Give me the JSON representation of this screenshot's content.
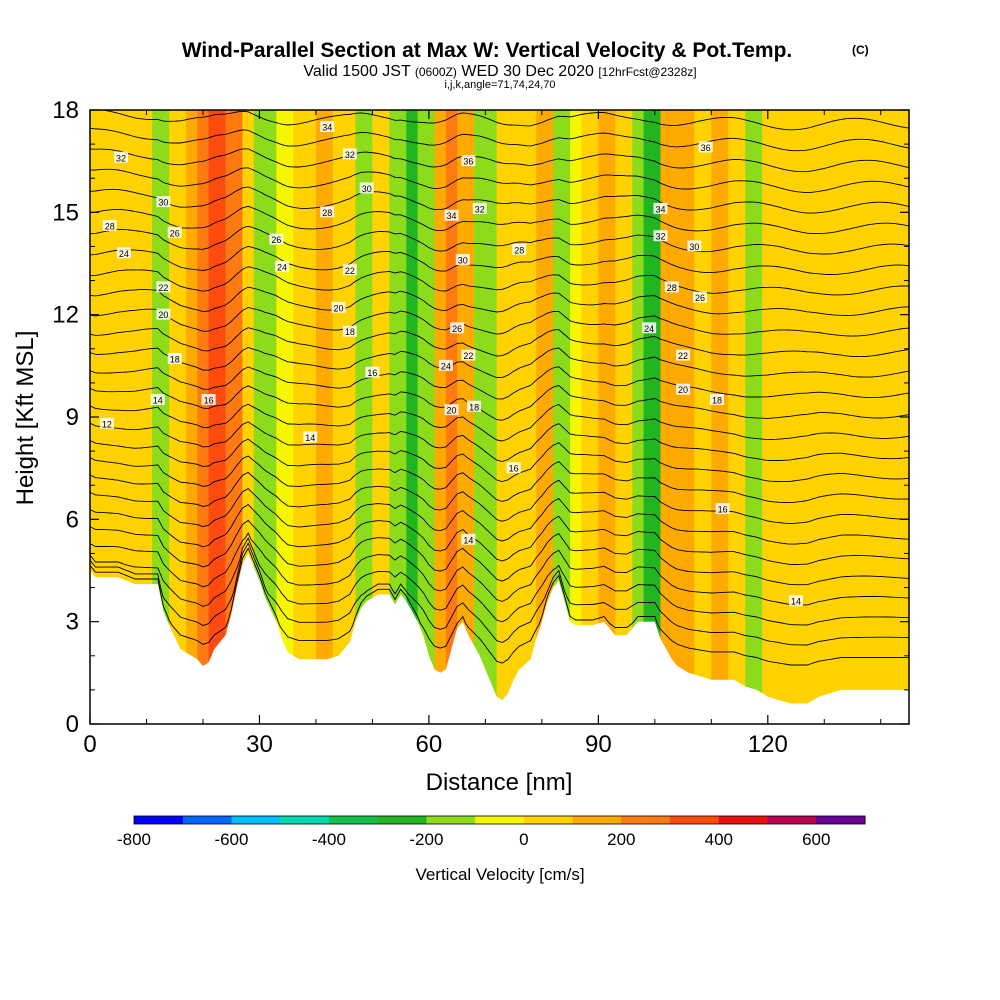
{
  "chart_data": {
    "type": "heatmap",
    "title": "Wind-Parallel Section at Max W: Vertical Velocity & Pot.Temp.",
    "title_mark": "(C)",
    "subtitle_parts": [
      "Valid 1500 JST",
      "(0600Z)",
      "WED 30 Dec 2020",
      "[12hrFcst@2328z]"
    ],
    "subtitle2": "i,j,k,angle=71,74,24,70",
    "xlabel": "Distance [nm]",
    "ylabel": "Height [Kft MSL]",
    "xlim": [
      0,
      145
    ],
    "ylim": [
      0,
      18
    ],
    "x_ticks": [
      "0",
      "30",
      "60",
      "90",
      "120"
    ],
    "x_tick_values": [
      0,
      30,
      60,
      90,
      120
    ],
    "y_ticks": [
      "0",
      "3",
      "6",
      "9",
      "12",
      "15",
      "18"
    ],
    "y_tick_values": [
      0,
      3,
      6,
      9,
      12,
      15,
      18
    ],
    "colorbar": {
      "label": "Vertical Velocity [cm/s]",
      "bounds": [
        -800,
        700
      ],
      "tick_labels": [
        "-800",
        "-600",
        "-400",
        "-200",
        "0",
        "200",
        "400",
        "600"
      ],
      "tick_values": [
        -800,
        -600,
        -400,
        -200,
        0,
        200,
        400,
        600
      ],
      "colors": [
        "#0000ff",
        "#0066ff",
        "#00bfff",
        "#00d9b0",
        "#11c04a",
        "#22b522",
        "#8ddc1c",
        "#f6f600",
        "#ffd200",
        "#ffaa00",
        "#ff7a10",
        "#ff4a10",
        "#e61010",
        "#b80050",
        "#6a009a"
      ]
    },
    "terrain_kft": [
      [
        0,
        4.5
      ],
      [
        1,
        4.3
      ],
      [
        5,
        4.3
      ],
      [
        8,
        4.1
      ],
      [
        12,
        4.1
      ],
      [
        13,
        3.3
      ],
      [
        14,
        2.9
      ],
      [
        16,
        2.2
      ],
      [
        19,
        1.9
      ],
      [
        20,
        1.7
      ],
      [
        21,
        1.8
      ],
      [
        22,
        2.2
      ],
      [
        24,
        2.6
      ],
      [
        25,
        3.2
      ],
      [
        26,
        4.0
      ],
      [
        27,
        4.7
      ],
      [
        28,
        5.0
      ],
      [
        29,
        4.6
      ],
      [
        30,
        4.2
      ],
      [
        31,
        3.7
      ],
      [
        33,
        3.0
      ],
      [
        34,
        2.5
      ],
      [
        35,
        2.1
      ],
      [
        37,
        1.9
      ],
      [
        42,
        1.9
      ],
      [
        44,
        2.0
      ],
      [
        46,
        2.4
      ],
      [
        47,
        3.0
      ],
      [
        48,
        3.4
      ],
      [
        49,
        3.6
      ],
      [
        50,
        3.7
      ],
      [
        51,
        3.8
      ],
      [
        53,
        3.8
      ],
      [
        54,
        3.5
      ],
      [
        55,
        3.8
      ],
      [
        56,
        3.6
      ],
      [
        57,
        3.3
      ],
      [
        58,
        3.0
      ],
      [
        59,
        2.6
      ],
      [
        60,
        2.0
      ],
      [
        61,
        1.6
      ],
      [
        62,
        1.5
      ],
      [
        63,
        1.6
      ],
      [
        64,
        2.2
      ],
      [
        65,
        2.8
      ],
      [
        66,
        3.0
      ],
      [
        67,
        2.6
      ],
      [
        69,
        2.0
      ],
      [
        70,
        1.6
      ],
      [
        71,
        1.2
      ],
      [
        72,
        0.8
      ],
      [
        73,
        0.7
      ],
      [
        74,
        0.9
      ],
      [
        75,
        1.3
      ],
      [
        76,
        1.6
      ],
      [
        78,
        1.9
      ],
      [
        79,
        2.5
      ],
      [
        80,
        3.0
      ],
      [
        81,
        3.6
      ],
      [
        82,
        4.0
      ],
      [
        83,
        4.2
      ],
      [
        84,
        3.6
      ],
      [
        85,
        3.0
      ],
      [
        86,
        2.9
      ],
      [
        89,
        2.9
      ],
      [
        91,
        3.0
      ],
      [
        92,
        2.8
      ],
      [
        93,
        2.6
      ],
      [
        95,
        2.6
      ],
      [
        96,
        2.8
      ],
      [
        97,
        3.0
      ],
      [
        100,
        3.0
      ],
      [
        101,
        2.5
      ],
      [
        102,
        2.2
      ],
      [
        103,
        1.9
      ],
      [
        104,
        1.7
      ],
      [
        106,
        1.5
      ],
      [
        108,
        1.4
      ],
      [
        110,
        1.3
      ],
      [
        114,
        1.3
      ],
      [
        116,
        1.1
      ],
      [
        118,
        1.0
      ],
      [
        120,
        0.8
      ],
      [
        122,
        0.7
      ],
      [
        124,
        0.6
      ],
      [
        127,
        0.6
      ],
      [
        129,
        0.8
      ],
      [
        131,
        0.9
      ],
      [
        133,
        1.0
      ],
      [
        135,
        1.0
      ],
      [
        145,
        1.0
      ]
    ],
    "vv_bands": [
      {
        "x": [
          0,
          11
        ],
        "value": 20
      },
      {
        "x": [
          11,
          14
        ],
        "value": -150
      },
      {
        "x": [
          14,
          17
        ],
        "value": 60
      },
      {
        "x": [
          17,
          19
        ],
        "value": 140
      },
      {
        "x": [
          19,
          21
        ],
        "value": 240
      },
      {
        "x": [
          21,
          24
        ],
        "value": 330
      },
      {
        "x": [
          24,
          27
        ],
        "value": 200
      },
      {
        "x": [
          27,
          29
        ],
        "value": 60
      },
      {
        "x": [
          29,
          33
        ],
        "value": -120
      },
      {
        "x": [
          33,
          36
        ],
        "value": -80
      },
      {
        "x": [
          36,
          40
        ],
        "value": 40
      },
      {
        "x": [
          40,
          43
        ],
        "value": 100
      },
      {
        "x": [
          43,
          47
        ],
        "value": 30
      },
      {
        "x": [
          47,
          50
        ],
        "value": -130
      },
      {
        "x": [
          50,
          53
        ],
        "value": 20
      },
      {
        "x": [
          53,
          56
        ],
        "value": -200
      },
      {
        "x": [
          56,
          58
        ],
        "value": -260
      },
      {
        "x": [
          58,
          61
        ],
        "value": -160
      },
      {
        "x": [
          61,
          63
        ],
        "value": 150
      },
      {
        "x": [
          63,
          65
        ],
        "value": 260
      },
      {
        "x": [
          65,
          68
        ],
        "value": 140
      },
      {
        "x": [
          68,
          72
        ],
        "value": -120
      },
      {
        "x": [
          72,
          76
        ],
        "value": 20
      },
      {
        "x": [
          76,
          79
        ],
        "value": 50
      },
      {
        "x": [
          79,
          82
        ],
        "value": 150
      },
      {
        "x": [
          82,
          85
        ],
        "value": -160
      },
      {
        "x": [
          85,
          87
        ],
        "value": -60
      },
      {
        "x": [
          87,
          90
        ],
        "value": 80
      },
      {
        "x": [
          90,
          93
        ],
        "value": 160
      },
      {
        "x": [
          93,
          96
        ],
        "value": 40
      },
      {
        "x": [
          96,
          98
        ],
        "value": -160
      },
      {
        "x": [
          98,
          101
        ],
        "value": -220
      },
      {
        "x": [
          101,
          104
        ],
        "value": 100
      },
      {
        "x": [
          104,
          107
        ],
        "value": 190
      },
      {
        "x": [
          107,
          110
        ],
        "value": 70
      },
      {
        "x": [
          110,
          113
        ],
        "value": 130
      },
      {
        "x": [
          113,
          116
        ],
        "value": 60
      },
      {
        "x": [
          116,
          119
        ],
        "value": -120
      },
      {
        "x": [
          119,
          124
        ],
        "value": 40
      },
      {
        "x": [
          124,
          130
        ],
        "value": 80
      },
      {
        "x": [
          130,
          136
        ],
        "value": 40
      },
      {
        "x": [
          136,
          141
        ],
        "value": 90
      },
      {
        "x": [
          141,
          145
        ],
        "value": 40
      }
    ],
    "isentrope_labels": [
      {
        "text": "32",
        "x": 5.5,
        "y": 16.6
      },
      {
        "text": "30",
        "x": 13,
        "y": 15.3
      },
      {
        "text": "28",
        "x": 3.5,
        "y": 14.6
      },
      {
        "text": "26",
        "x": 15,
        "y": 14.4
      },
      {
        "text": "24",
        "x": 6,
        "y": 13.8
      },
      {
        "text": "22",
        "x": 13,
        "y": 12.8
      },
      {
        "text": "20",
        "x": 13,
        "y": 12.0
      },
      {
        "text": "18",
        "x": 15,
        "y": 10.7
      },
      {
        "text": "14",
        "x": 12,
        "y": 9.5
      },
      {
        "text": "16",
        "x": 21,
        "y": 9.5
      },
      {
        "text": "12",
        "x": 3,
        "y": 8.8
      },
      {
        "text": "34",
        "x": 42,
        "y": 17.5
      },
      {
        "text": "32",
        "x": 46,
        "y": 16.7
      },
      {
        "text": "30",
        "x": 49,
        "y": 15.7
      },
      {
        "text": "28",
        "x": 42,
        "y": 15.0
      },
      {
        "text": "26",
        "x": 33,
        "y": 14.2
      },
      {
        "text": "24",
        "x": 34,
        "y": 13.4
      },
      {
        "text": "22",
        "x": 46,
        "y": 13.3
      },
      {
        "text": "20",
        "x": 44,
        "y": 12.2
      },
      {
        "text": "18",
        "x": 46,
        "y": 11.5
      },
      {
        "text": "16",
        "x": 50,
        "y": 10.3
      },
      {
        "text": "14",
        "x": 39,
        "y": 8.4
      },
      {
        "text": "36",
        "x": 67,
        "y": 16.5
      },
      {
        "text": "34",
        "x": 64,
        "y": 14.9
      },
      {
        "text": "32",
        "x": 69,
        "y": 15.1
      },
      {
        "text": "30",
        "x": 66,
        "y": 13.6
      },
      {
        "text": "28",
        "x": 76,
        "y": 13.9
      },
      {
        "text": "26",
        "x": 65,
        "y": 11.6
      },
      {
        "text": "24",
        "x": 63,
        "y": 10.5
      },
      {
        "text": "22",
        "x": 67,
        "y": 10.8
      },
      {
        "text": "20",
        "x": 64,
        "y": 9.2
      },
      {
        "text": "18",
        "x": 68,
        "y": 9.3
      },
      {
        "text": "16",
        "x": 75,
        "y": 7.5
      },
      {
        "text": "14",
        "x": 67,
        "y": 5.4
      },
      {
        "text": "36",
        "x": 109,
        "y": 16.9
      },
      {
        "text": "34",
        "x": 101,
        "y": 15.1
      },
      {
        "text": "32",
        "x": 101,
        "y": 14.3
      },
      {
        "text": "30",
        "x": 107,
        "y": 14.0
      },
      {
        "text": "28",
        "x": 103,
        "y": 12.8
      },
      {
        "text": "26",
        "x": 108,
        "y": 12.5
      },
      {
        "text": "24",
        "x": 99,
        "y": 11.6
      },
      {
        "text": "22",
        "x": 105,
        "y": 10.8
      },
      {
        "text": "20",
        "x": 105,
        "y": 9.8
      },
      {
        "text": "18",
        "x": 111,
        "y": 9.5
      },
      {
        "text": "16",
        "x": 112,
        "y": 6.3
      },
      {
        "text": "14",
        "x": 125,
        "y": 3.6
      }
    ]
  }
}
